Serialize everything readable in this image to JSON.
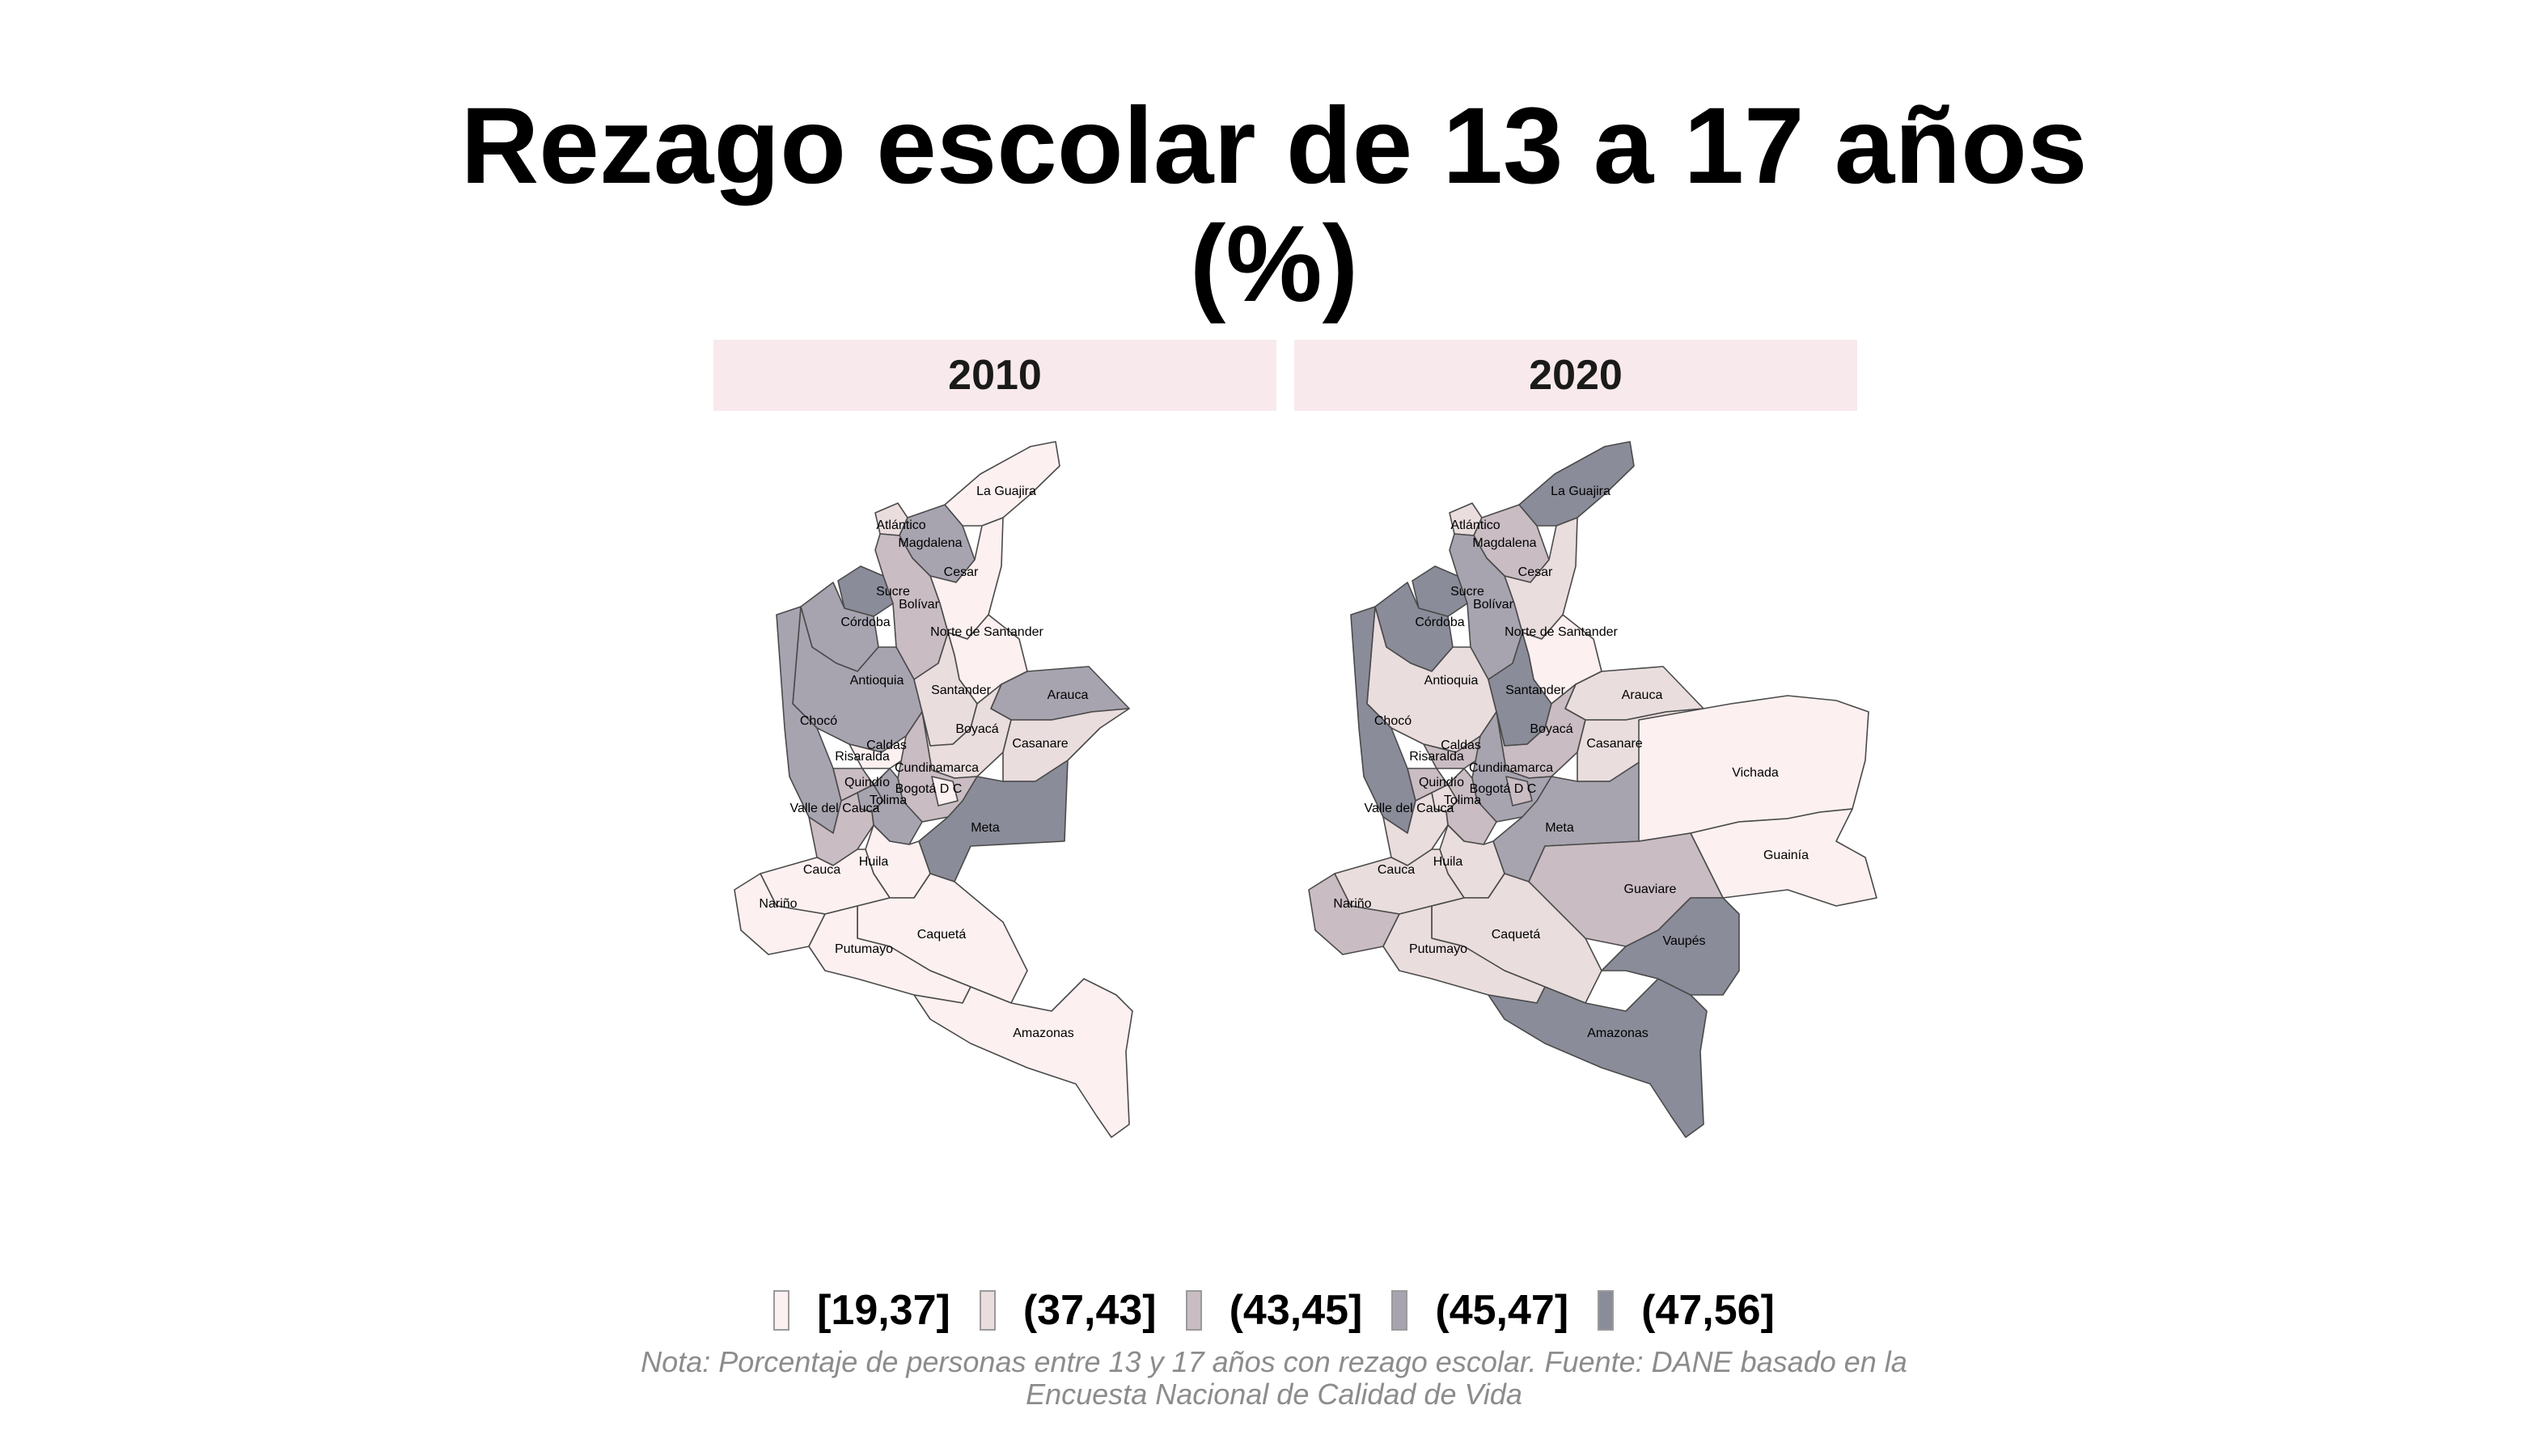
{
  "title_line1": "Rezago escolar de 13 a 17 años",
  "title_line2": "(%)",
  "colors": [
    "#fcf0f0",
    "#eaddde",
    "#c9bcc2",
    "#a7a4b0",
    "#8a8c99"
  ],
  "legend": [
    "[19,37]",
    "(37,43]",
    "(43,45]",
    "(45,47]",
    "(47,56]"
  ],
  "panels": [
    {
      "year": "2010",
      "labels": [
        "La Guajira",
        "Atlántico",
        "Magdalena",
        "Cesar",
        "Sucre",
        "Bolívar",
        "Córdoba",
        "Norte de Santander",
        "Antioquia",
        "Santander",
        "Arauca",
        "Chocó",
        "Boyacá",
        "Casanare",
        "Caldas",
        "Risaralda",
        "Cundinamarca",
        "Quindío",
        "Bogotá D C",
        "Tolima",
        "Valle del Cauca",
        "Meta",
        "Huila",
        "Cauca",
        "Nariño",
        "Caquetá",
        "Putumayo",
        "Amazonas"
      ],
      "classes": {
        "La Guajira": 0,
        "Atlántico": 1,
        "Magdalena": 3,
        "Cesar": 0,
        "Sucre": 4,
        "Bolívar": 2,
        "Córdoba": 3,
        "Norte de Santander": 0,
        "Antioquia": 3,
        "Santander": 1,
        "Arauca": 3,
        "Chocó": 3,
        "Boyacá": 1,
        "Casanare": 1,
        "Caldas": 0,
        "Risaralda": 2,
        "Cundinamarca": 2,
        "Quindío": 3,
        "Bogotá D C": 0,
        "Tolima": 3,
        "Valle del Cauca": 2,
        "Meta": 4,
        "Huila": 0,
        "Cauca": 0,
        "Nariño": 0,
        "Caquetá": 0,
        "Putumayo": 0,
        "Amazonas": 0
      }
    },
    {
      "year": "2020",
      "labels": [
        "La Guajira",
        "Atlántico",
        "Magdalena",
        "Cesar",
        "Sucre",
        "Bolívar",
        "Córdoba",
        "Norte de Santander",
        "Antioquia",
        "Santander",
        "Arauca",
        "Chocó",
        "Boyacá",
        "Casanare",
        "Caldas",
        "Risaralda",
        "Cundinamarca",
        "Quindío",
        "Bogotá D C",
        "Tolima",
        "Valle del Cauca",
        "Vichada",
        "Meta",
        "Guainía",
        "Huila",
        "Guaviare",
        "Cauca",
        "Nariño",
        "Caquetá",
        "Vaupés",
        "Putumayo",
        "Amazonas"
      ],
      "classes": {
        "La Guajira": 4,
        "Atlántico": 1,
        "Magdalena": 2,
        "Cesar": 1,
        "Sucre": 4,
        "Bolívar": 3,
        "Córdoba": 4,
        "Norte de Santander": 0,
        "Antioquia": 1,
        "Santander": 4,
        "Arauca": 1,
        "Chocó": 4,
        "Boyacá": 2,
        "Casanare": 1,
        "Caldas": 2,
        "Risaralda": 2,
        "Cundinamarca": 3,
        "Quindío": 1,
        "Bogotá D C": 2,
        "Tolima": 2,
        "Valle del Cauca": 1,
        "Vichada": 0,
        "Meta": 3,
        "Guainía": 0,
        "Huila": 1,
        "Guaviare": 2,
        "Cauca": 1,
        "Nariño": 2,
        "Caquetá": 1,
        "Vaupés": 4,
        "Putumayo": 1,
        "Amazonas": 4
      }
    }
  ],
  "note_line1": "Nota: Porcentaje de personas entre 13 y 17 años con rezago escolar. Fuente: DANE basado en la",
  "note_line2": "Encuesta Nacional de Calidad de Vida"
}
